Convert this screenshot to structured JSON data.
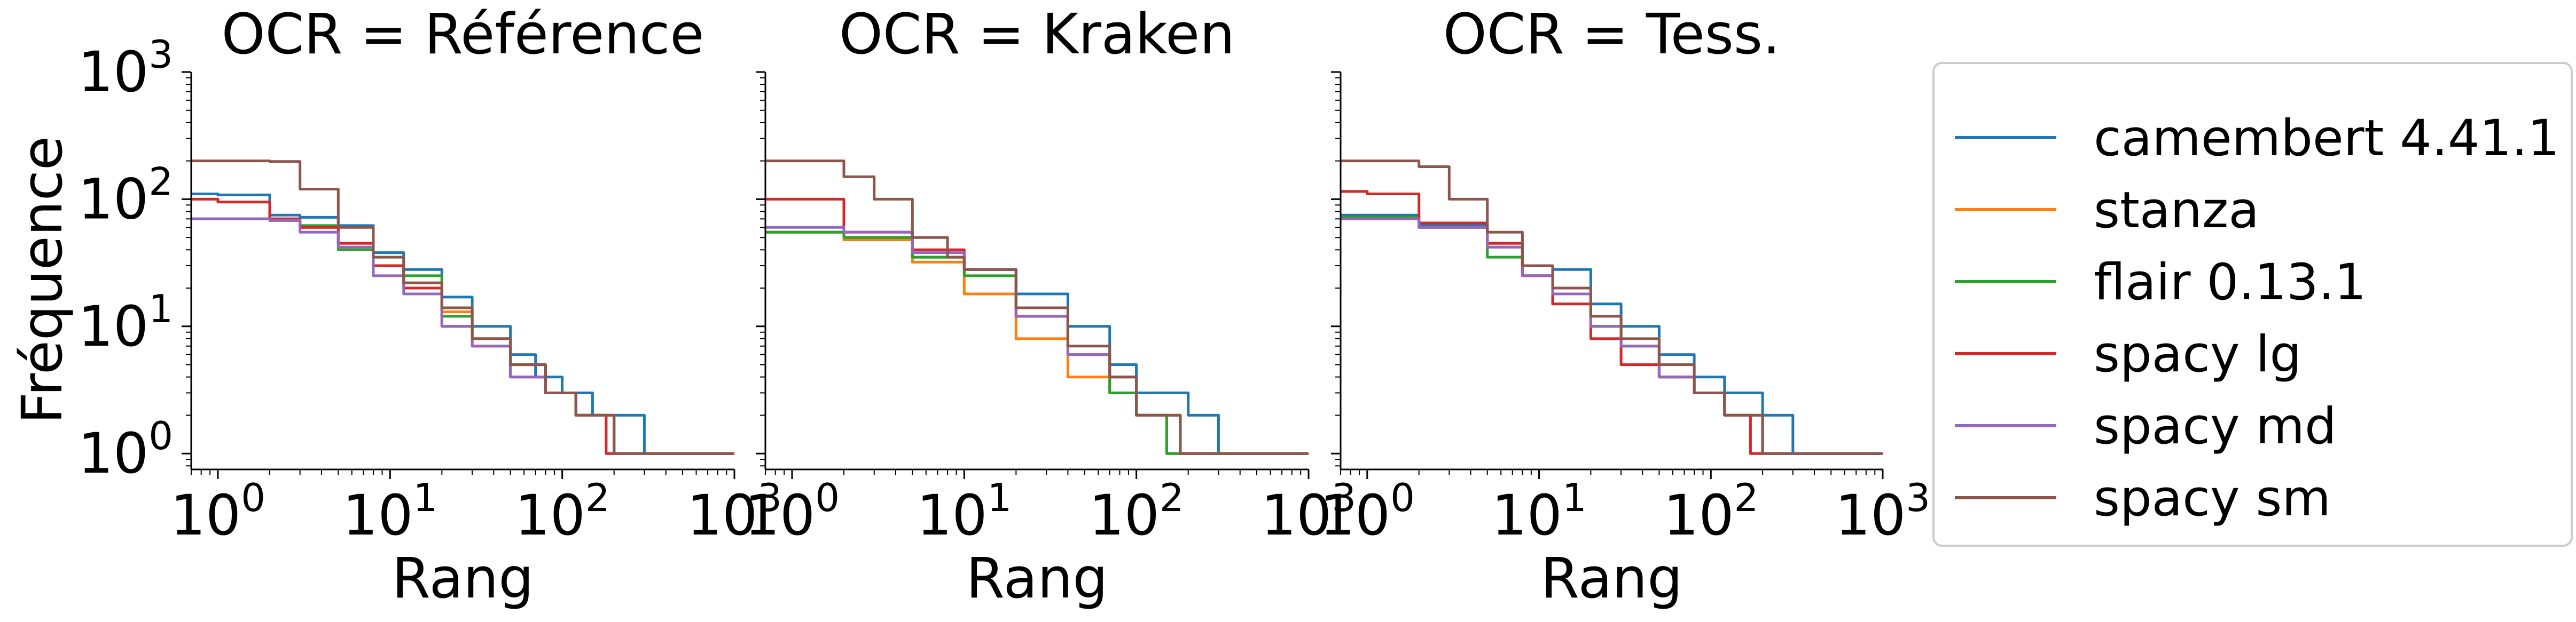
{
  "figure": {
    "ylabel": "Fréquence",
    "xlabel": "Rang"
  },
  "colors": {
    "camembert 4.41.1": "#1f77b4",
    "stanza": "#ff7f0e",
    "flair 0.13.1": "#2ca02c",
    "spacy lg": "#d62728",
    "spacy md": "#9467bd",
    "spacy sm": "#8c564b"
  },
  "legend": {
    "placement": "right",
    "entries": [
      "camembert 4.41.1",
      "stanza",
      "flair 0.13.1",
      "spacy lg",
      "spacy md",
      "spacy sm"
    ]
  },
  "chart_data": [
    {
      "type": "line",
      "title": "OCR = Référence",
      "xlabel": "Rang",
      "ylabel": "Fréquence",
      "xscale": "log",
      "yscale": "log",
      "xlim": [
        0.7,
        1000
      ],
      "ylim": [
        0.75,
        1000
      ],
      "xticks": [
        {
          "base": "10",
          "exp": "0"
        },
        {
          "base": "10",
          "exp": "1"
        },
        {
          "base": "10",
          "exp": "2"
        },
        {
          "base": "10",
          "exp": "3"
        }
      ],
      "yticks": [
        {
          "base": "10",
          "exp": "0"
        },
        {
          "base": "10",
          "exp": "1"
        },
        {
          "base": "10",
          "exp": "2"
        },
        {
          "base": "10",
          "exp": "3"
        }
      ],
      "series": [
        {
          "name": "camembert 4.41.1",
          "x": [
            0.7,
            1,
            2,
            3,
            5,
            8,
            12,
            20,
            30,
            50,
            70,
            100,
            150,
            300,
            1000
          ],
          "y": [
            110,
            108,
            75,
            72,
            62,
            38,
            28,
            17,
            10,
            6,
            4,
            3,
            2,
            1,
            1
          ]
        },
        {
          "name": "stanza",
          "x": [
            0.7,
            1,
            2,
            3,
            5,
            8,
            12,
            20,
            30,
            50,
            80,
            120,
            200,
            1000
          ],
          "y": [
            70,
            70,
            68,
            60,
            45,
            30,
            22,
            13,
            8,
            5,
            3,
            2,
            1,
            1
          ]
        },
        {
          "name": "flair 0.13.1",
          "x": [
            0.7,
            1,
            2,
            3,
            5,
            8,
            12,
            20,
            30,
            50,
            80,
            120,
            200,
            1000
          ],
          "y": [
            70,
            70,
            68,
            62,
            40,
            30,
            25,
            12,
            8,
            5,
            3,
            2,
            1,
            1
          ]
        },
        {
          "name": "spacy lg",
          "x": [
            0.7,
            1,
            2,
            3,
            5,
            8,
            12,
            20,
            30,
            50,
            80,
            120,
            180,
            1000
          ],
          "y": [
            100,
            95,
            70,
            60,
            45,
            30,
            20,
            10,
            7,
            4,
            3,
            2,
            1,
            1
          ]
        },
        {
          "name": "spacy md",
          "x": [
            0.7,
            1,
            2,
            3,
            5,
            8,
            12,
            20,
            30,
            50,
            80,
            120,
            200,
            1000
          ],
          "y": [
            70,
            70,
            68,
            55,
            42,
            25,
            18,
            10,
            7,
            4,
            3,
            2,
            1,
            1
          ]
        },
        {
          "name": "spacy sm",
          "x": [
            0.7,
            1,
            2,
            3,
            5,
            8,
            12,
            20,
            30,
            50,
            80,
            120,
            200,
            1000
          ],
          "y": [
            200,
            200,
            198,
            120,
            60,
            35,
            22,
            14,
            8,
            5,
            3,
            2,
            1,
            1
          ]
        }
      ]
    },
    {
      "type": "line",
      "title": "OCR = Kraken",
      "xlabel": "Rang",
      "ylabel": "",
      "xscale": "log",
      "yscale": "log",
      "xlim": [
        0.7,
        1000
      ],
      "ylim": [
        0.75,
        1000
      ],
      "xticks": [
        {
          "base": "10",
          "exp": "0"
        },
        {
          "base": "10",
          "exp": "1"
        },
        {
          "base": "10",
          "exp": "2"
        },
        {
          "base": "10",
          "exp": "3"
        }
      ],
      "yticks": [],
      "series": [
        {
          "name": "camembert 4.41.1",
          "x": [
            0.7,
            1,
            2,
            5,
            10,
            20,
            40,
            70,
            100,
            200,
            300,
            1000
          ],
          "y": [
            55,
            55,
            48,
            35,
            28,
            18,
            10,
            5,
            3,
            2,
            1,
            1
          ]
        },
        {
          "name": "stanza",
          "x": [
            0.7,
            1,
            2,
            5,
            10,
            20,
            40,
            70,
            100,
            150,
            1000
          ],
          "y": [
            55,
            55,
            48,
            32,
            18,
            8,
            4,
            3,
            2,
            1,
            1
          ]
        },
        {
          "name": "flair 0.13.1",
          "x": [
            0.7,
            1,
            2,
            5,
            10,
            20,
            40,
            70,
            100,
            150,
            1000
          ],
          "y": [
            55,
            55,
            50,
            35,
            25,
            12,
            6,
            3,
            2,
            1,
            1
          ]
        },
        {
          "name": "spacy lg",
          "x": [
            0.7,
            1,
            2,
            5,
            10,
            20,
            40,
            70,
            100,
            180,
            1000
          ],
          "y": [
            100,
            100,
            55,
            40,
            28,
            12,
            6,
            4,
            2,
            1,
            1
          ]
        },
        {
          "name": "spacy md",
          "x": [
            0.7,
            1,
            2,
            5,
            10,
            20,
            40,
            70,
            100,
            180,
            1000
          ],
          "y": [
            60,
            60,
            55,
            38,
            28,
            12,
            6,
            4,
            2,
            1,
            1
          ]
        },
        {
          "name": "spacy sm",
          "x": [
            0.7,
            1,
            2,
            3,
            5,
            8,
            10,
            20,
            40,
            70,
            100,
            180,
            1000
          ],
          "y": [
            200,
            200,
            150,
            100,
            50,
            35,
            28,
            14,
            7,
            4,
            2,
            1,
            1
          ]
        }
      ]
    },
    {
      "type": "line",
      "title": "OCR = Tess.",
      "xlabel": "Rang",
      "ylabel": "",
      "xscale": "log",
      "yscale": "log",
      "xlim": [
        0.7,
        1000
      ],
      "ylim": [
        0.75,
        1000
      ],
      "xticks": [
        {
          "base": "10",
          "exp": "0"
        },
        {
          "base": "10",
          "exp": "1"
        },
        {
          "base": "10",
          "exp": "2"
        },
        {
          "base": "10",
          "exp": "3"
        }
      ],
      "yticks": [],
      "series": [
        {
          "name": "camembert 4.41.1",
          "x": [
            0.7,
            1,
            2,
            5,
            8,
            12,
            20,
            30,
            50,
            80,
            120,
            200,
            300,
            1000
          ],
          "y": [
            75,
            75,
            62,
            45,
            30,
            28,
            15,
            10,
            6,
            4,
            3,
            2,
            1,
            1
          ]
        },
        {
          "name": "stanza",
          "x": [
            0.7,
            1,
            2,
            5,
            8,
            12,
            20,
            30,
            50,
            80,
            120,
            200,
            1000
          ],
          "y": [
            70,
            70,
            60,
            42,
            25,
            18,
            10,
            7,
            4,
            3,
            2,
            1,
            1
          ]
        },
        {
          "name": "flair 0.13.1",
          "x": [
            0.7,
            1,
            2,
            5,
            8,
            12,
            20,
            30,
            50,
            80,
            120,
            200,
            1000
          ],
          "y": [
            72,
            72,
            60,
            35,
            25,
            18,
            10,
            7,
            4,
            3,
            2,
            1,
            1
          ]
        },
        {
          "name": "spacy lg",
          "x": [
            0.7,
            1,
            2,
            5,
            8,
            12,
            20,
            30,
            50,
            80,
            120,
            170,
            1000
          ],
          "y": [
            115,
            110,
            65,
            45,
            25,
            15,
            8,
            5,
            4,
            3,
            2,
            1,
            1
          ]
        },
        {
          "name": "spacy md",
          "x": [
            0.7,
            1,
            2,
            5,
            8,
            12,
            20,
            30,
            50,
            80,
            120,
            200,
            1000
          ],
          "y": [
            70,
            70,
            60,
            42,
            25,
            18,
            10,
            7,
            4,
            3,
            2,
            1,
            1
          ]
        },
        {
          "name": "spacy sm",
          "x": [
            0.7,
            1,
            2,
            3,
            5,
            8,
            12,
            20,
            30,
            50,
            80,
            120,
            200,
            1000
          ],
          "y": [
            200,
            200,
            180,
            100,
            55,
            30,
            20,
            12,
            8,
            5,
            3,
            2,
            1,
            1
          ]
        }
      ]
    }
  ]
}
